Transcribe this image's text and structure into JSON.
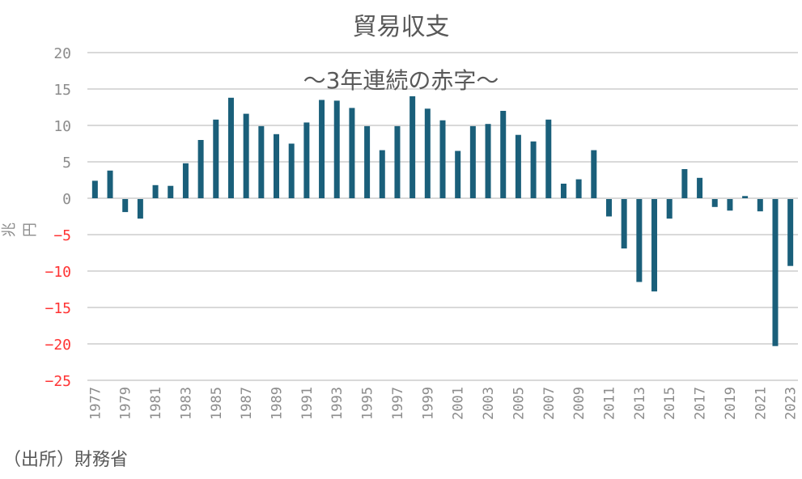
{
  "chart_data": {
    "type": "bar",
    "title": "貿易収支",
    "subtitle": "～3年連続の赤字～",
    "xlabel": "",
    "ylabel": "兆円",
    "source": "（出所）財務省",
    "ylim": [
      -25,
      20
    ],
    "yticks": [
      20,
      15,
      10,
      5,
      0,
      -5,
      -10,
      -15,
      -20,
      -25
    ],
    "grid": true,
    "legend": null,
    "bar_color": "#1a5f7a",
    "positive_tick_color": "#8c8c8c",
    "negative_tick_color": "#ff3333",
    "categories": [
      "1977",
      "1978",
      "1979",
      "1980",
      "1981",
      "1982",
      "1983",
      "1984",
      "1985",
      "1986",
      "1987",
      "1988",
      "1989",
      "1990",
      "1991",
      "1992",
      "1993",
      "1994",
      "1995",
      "1996",
      "1997",
      "1998",
      "1999",
      "2000",
      "2001",
      "2002",
      "2003",
      "2004",
      "2005",
      "2006",
      "2007",
      "2008",
      "2009",
      "2010",
      "2011",
      "2012",
      "2013",
      "2014",
      "2015",
      "2016",
      "2017",
      "2018",
      "2019",
      "2020",
      "2021",
      "2022",
      "2023"
    ],
    "xtick_labels": [
      "1977",
      "1979",
      "1981",
      "1983",
      "1985",
      "1987",
      "1989",
      "1991",
      "1993",
      "1995",
      "1997",
      "1999",
      "2001",
      "2003",
      "2005",
      "2007",
      "2009",
      "2011",
      "2013",
      "2015",
      "2017",
      "2019",
      "2021",
      "2023"
    ],
    "values": [
      2.4,
      3.8,
      -1.9,
      -2.8,
      1.8,
      1.7,
      4.8,
      8.0,
      10.8,
      13.8,
      11.6,
      9.9,
      8.8,
      7.5,
      10.4,
      13.5,
      13.4,
      12.4,
      9.9,
      6.6,
      9.9,
      14.0,
      12.3,
      10.7,
      6.5,
      9.9,
      10.2,
      12.0,
      8.7,
      7.8,
      10.8,
      2.0,
      2.6,
      6.6,
      -2.5,
      -6.9,
      -11.5,
      -12.8,
      -2.8,
      4.0,
      2.8,
      -1.2,
      -1.7,
      0.3,
      -1.8,
      -20.3,
      -9.3
    ]
  }
}
